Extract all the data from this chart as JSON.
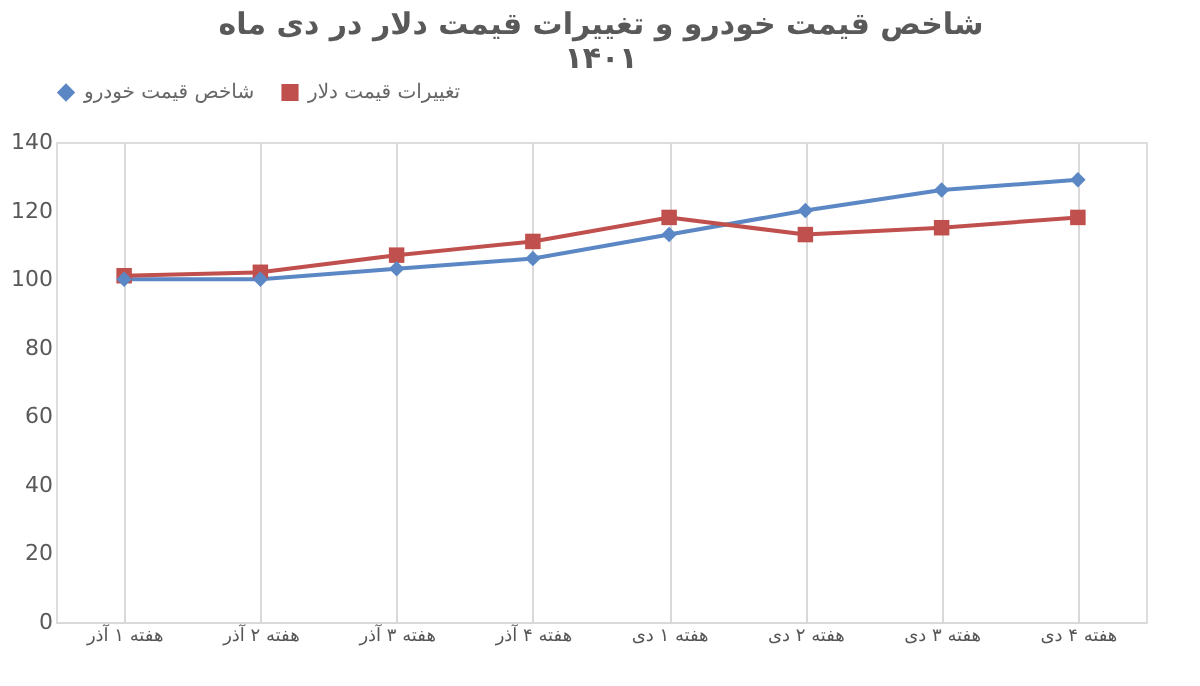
{
  "chart_data": {
    "type": "line",
    "title": "شاخص قیمت خودرو و تغییرات قیمت دلار در دی ماه ۱۴۰۱",
    "categories": [
      "هفته ۱ آذر",
      "هفته ۲ آذر",
      "هفته ۳ آذر",
      "هفته ۴ آذر",
      "هفته ۱ دی",
      "هفته ۲ دی",
      "هفته ۳ دی",
      "هفته ۴ دی"
    ],
    "series": [
      {
        "name": "شاخص قیمت خودرو",
        "color": "#5b87c5",
        "marker": "diamond",
        "values": [
          100,
          100,
          103,
          106,
          113,
          120,
          126,
          129
        ]
      },
      {
        "name": "تغییرات قیمت دلار",
        "color": "#c0504d",
        "marker": "square",
        "values": [
          101,
          102,
          107,
          111,
          118,
          113,
          115,
          118
        ]
      }
    ],
    "ylim": [
      0,
      140
    ],
    "yticks": [
      0,
      20,
      40,
      60,
      80,
      100,
      120,
      140
    ],
    "grid": "x",
    "legend": "top",
    "line_style": "solid"
  }
}
